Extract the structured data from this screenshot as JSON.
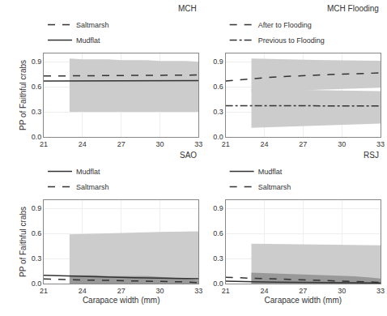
{
  "chart_data": [
    {
      "type": "line",
      "title": "MCH",
      "x": [
        21,
        22,
        23,
        24,
        25,
        26,
        27,
        28,
        29,
        30,
        31,
        32,
        33
      ],
      "xlim": [
        21,
        33
      ],
      "xticks": [
        21,
        24,
        27,
        30,
        33
      ],
      "ylim": [
        0.0,
        1.0
      ],
      "yticks": [
        {
          "value": 0.0,
          "label": "0.0"
        },
        0.3,
        0.6,
        0.9
      ],
      "ylabel": "PP of Faithful crabs",
      "grid": true,
      "series": [
        {
          "name": "Mudflat",
          "color": "#333333",
          "line_style": "solid",
          "values": [
            0.67,
            0.67,
            0.67,
            0.67,
            0.671,
            0.671,
            0.672,
            0.672,
            0.673,
            0.673,
            0.674,
            0.674,
            0.675
          ]
        },
        {
          "name": "Saltmarsh",
          "color": "#333333",
          "line_style": "dashed",
          "values": [
            0.73,
            0.731,
            0.732,
            0.733,
            0.734,
            0.735,
            0.736,
            0.737,
            0.738,
            0.739,
            0.74,
            0.741,
            0.742
          ]
        }
      ],
      "bands": [
        {
          "color": "#cccccc",
          "x": [
            23,
            24,
            25,
            26,
            27,
            28,
            29,
            30,
            31,
            32,
            33
          ],
          "lower": [
            0.3,
            0.3,
            0.3,
            0.3,
            0.3,
            0.3,
            0.3,
            0.3,
            0.3,
            0.3,
            0.3
          ],
          "upper": [
            0.94,
            0.93,
            0.93,
            0.93,
            0.92,
            0.92,
            0.92,
            0.91,
            0.91,
            0.91,
            0.9
          ]
        }
      ]
    },
    {
      "type": "line",
      "title": "MCH Flooding",
      "x": [
        21,
        22,
        23,
        24,
        25,
        26,
        27,
        28,
        29,
        30,
        31,
        32,
        33
      ],
      "xlim": [
        21,
        33
      ],
      "xticks": [
        21,
        24,
        27,
        30,
        33
      ],
      "ylim": [
        0.0,
        1.0
      ],
      "yticks": [
        {
          "value": 0.0,
          "label": "0.0"
        },
        0.3,
        0.6,
        0.9
      ],
      "grid": true,
      "series": [
        {
          "name": "After to Flooding",
          "color": "#333333",
          "line_style": "dashed",
          "values": [
            0.67,
            0.685,
            0.698,
            0.71,
            0.72,
            0.728,
            0.735,
            0.741,
            0.747,
            0.752,
            0.757,
            0.762,
            0.767
          ]
        },
        {
          "name": "Previous to Flooding",
          "color": "#333333",
          "line_style": "dashdot",
          "values": [
            0.375,
            0.375,
            0.374,
            0.374,
            0.374,
            0.373,
            0.373,
            0.373,
            0.372,
            0.372,
            0.372,
            0.372,
            0.371
          ]
        }
      ],
      "bands": [
        {
          "color": "#cccccc",
          "x": [
            23,
            24,
            25,
            26,
            27,
            28,
            29,
            30,
            31,
            32,
            33
          ],
          "lower": [
            0.54,
            0.545,
            0.55,
            0.555,
            0.56,
            0.565,
            0.57,
            0.575,
            0.58,
            0.585,
            0.59
          ],
          "upper": [
            0.94,
            0.935,
            0.93,
            0.928,
            0.925,
            0.922,
            0.92,
            0.918,
            0.916,
            0.914,
            0.912
          ]
        },
        {
          "color": "#cccccc",
          "x": [
            23,
            24,
            25,
            26,
            27,
            28,
            29,
            30,
            31,
            32,
            33
          ],
          "lower": [
            0.11,
            0.115,
            0.12,
            0.125,
            0.13,
            0.135,
            0.14,
            0.145,
            0.15,
            0.155,
            0.16
          ],
          "upper": [
            0.572,
            0.57,
            0.567,
            0.565,
            0.562,
            0.56,
            0.558,
            0.555,
            0.552,
            0.55,
            0.548
          ]
        }
      ]
    },
    {
      "type": "line",
      "title": "SAO",
      "x": [
        21,
        22,
        23,
        24,
        25,
        26,
        27,
        28,
        29,
        30,
        31,
        32,
        33
      ],
      "xlim": [
        21,
        33
      ],
      "xticks": [
        21,
        24,
        27,
        30,
        33
      ],
      "ylim": [
        0.0,
        1.0
      ],
      "yticks": [
        {
          "value": 0.0,
          "label": "0.0"
        },
        0.3,
        0.6,
        0.9
      ],
      "xlabel": "Carapace width (mm)",
      "ylabel": "PP of Faithful crabs",
      "grid": true,
      "series": [
        {
          "name": "Mudflat",
          "color": "#333333",
          "line_style": "solid",
          "values": [
            0.1,
            0.095,
            0.09,
            0.086,
            0.082,
            0.078,
            0.074,
            0.071,
            0.068,
            0.065,
            0.062,
            0.06,
            0.058
          ]
        },
        {
          "name": "Saltmarsh",
          "color": "#333333",
          "line_style": "dashed",
          "values": [
            0.055,
            0.05,
            0.046,
            0.042,
            0.04,
            0.038,
            0.036,
            0.034,
            0.032,
            0.03,
            0.027,
            0.02,
            0.012
          ]
        }
      ],
      "bands": [
        {
          "color": "#cccccc",
          "x": [
            23,
            24,
            25,
            26,
            27,
            28,
            29,
            30,
            31,
            32,
            33
          ],
          "lower": [
            0.0,
            0.0,
            0.0,
            0.0,
            0.0,
            0.0,
            0.0,
            0.0,
            0.0,
            0.0,
            0.0
          ],
          "upper": [
            0.59,
            0.595,
            0.6,
            0.605,
            0.61,
            0.615,
            0.615,
            0.62,
            0.622,
            0.624,
            0.626
          ]
        },
        {
          "color": "#999999",
          "x": [
            23,
            24,
            25,
            26,
            27,
            28,
            29,
            30,
            31,
            32,
            33
          ],
          "lower": [
            0.0,
            0.0,
            0.0,
            0.0,
            0.0,
            0.0,
            0.0,
            0.0,
            0.0,
            0.0,
            0.0
          ],
          "upper": [
            0.1,
            0.1,
            0.1,
            0.09,
            0.09,
            0.09,
            0.09,
            0.08,
            0.07,
            0.06,
            0.04
          ]
        }
      ]
    },
    {
      "type": "line",
      "title": "RSJ",
      "x": [
        21,
        22,
        23,
        24,
        25,
        26,
        27,
        28,
        29,
        30,
        31,
        32,
        33
      ],
      "xlim": [
        21,
        33
      ],
      "xticks": [
        21,
        24,
        27,
        30,
        33
      ],
      "ylim": [
        0.0,
        1.0
      ],
      "yticks": [
        {
          "value": 0.0,
          "label": "0.0"
        },
        0.3,
        0.6,
        0.9
      ],
      "xlabel": "Carapace width (mm)",
      "grid": true,
      "series": [
        {
          "name": "Mudflat",
          "color": "#333333",
          "line_style": "solid",
          "values": [
            0.03,
            0.025,
            0.022,
            0.02,
            0.018,
            0.016,
            0.014,
            0.013,
            0.012,
            0.011,
            0.01,
            0.009,
            0.008
          ]
        },
        {
          "name": "Saltmarsh",
          "color": "#333333",
          "line_style": "dashed",
          "values": [
            0.075,
            0.07,
            0.065,
            0.06,
            0.056,
            0.052,
            0.048,
            0.044,
            0.04,
            0.037,
            0.032,
            0.023,
            0.015
          ]
        }
      ],
      "bands": [
        {
          "color": "#cccccc",
          "x": [
            23,
            24,
            25,
            26,
            27,
            28,
            29,
            30,
            31,
            32,
            33
          ],
          "lower": [
            0.0,
            0.0,
            0.0,
            0.0,
            0.0,
            0.0,
            0.0,
            0.0,
            0.0,
            0.0,
            0.0
          ],
          "upper": [
            0.478,
            0.476,
            0.474,
            0.472,
            0.47,
            0.468,
            0.466,
            0.464,
            0.462,
            0.46,
            0.458
          ]
        },
        {
          "color": "#999999",
          "x": [
            23,
            24,
            25,
            26,
            27,
            28,
            29,
            30,
            31,
            32,
            33
          ],
          "lower": [
            0.0,
            0.0,
            0.0,
            0.0,
            0.0,
            0.0,
            0.0,
            0.0,
            0.0,
            0.0,
            0.0
          ],
          "upper": [
            0.13,
            0.125,
            0.12,
            0.115,
            0.11,
            0.105,
            0.1,
            0.095,
            0.088,
            0.075,
            0.06
          ]
        }
      ]
    }
  ]
}
